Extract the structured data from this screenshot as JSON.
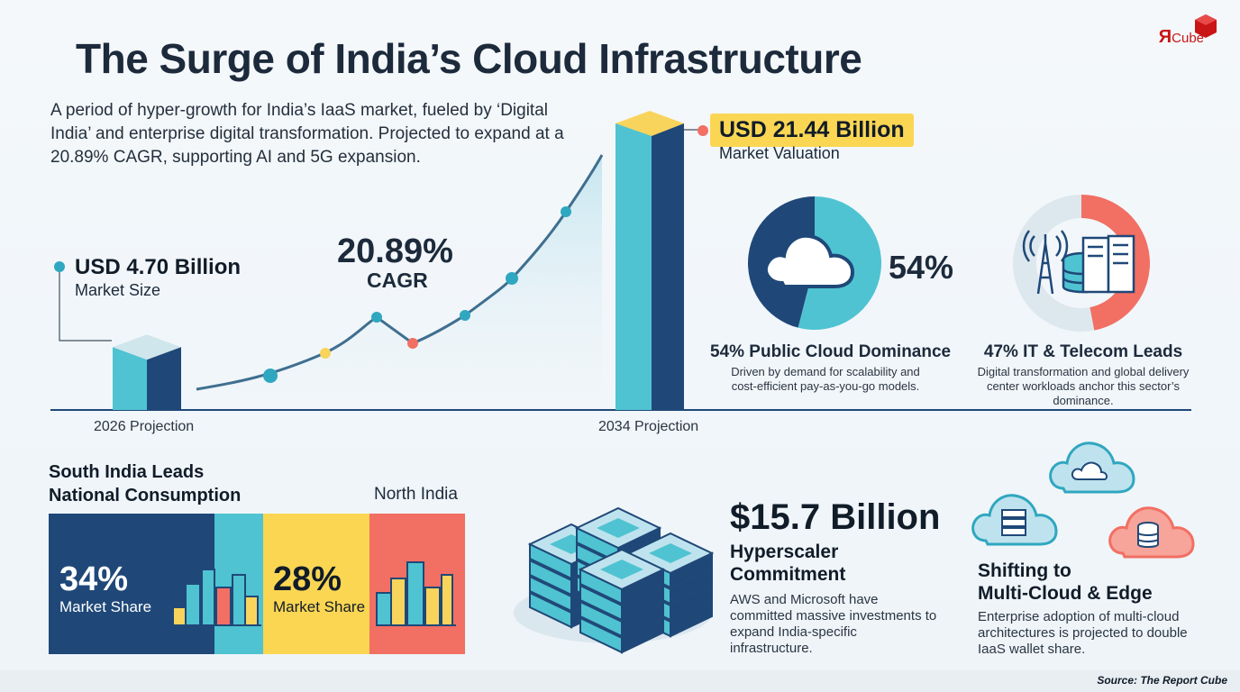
{
  "header": {
    "title": "The Surge of India’s Cloud Infrastructure",
    "subtitle": "A period of hyper-growth for India’s IaaS market, fueled by ‘Digital India’ and enterprise digital transformation. Projected to expand at a 20.89% CAGR, supporting AI and 5G expansion.",
    "logo_main": "Я",
    "logo_sub": "Cube"
  },
  "chart_data": [
    {
      "type": "bar",
      "categories": [
        "2026 Projection",
        "2034 Projection"
      ],
      "values": [
        4.7,
        21.44
      ],
      "value_labels": [
        "USD 4.70 Billion",
        "USD 21.44 Billion"
      ],
      "value_captions": [
        "Market Size",
        "Market Valuation"
      ],
      "annotation": {
        "value": "20.89%",
        "label": "CAGR"
      },
      "title": "",
      "xlabel": "",
      "ylabel": "",
      "colors": {
        "front": "#4fc3d1",
        "side": "#1f4878",
        "top_left": "#cfe6ec",
        "top_right": "#f9d45c"
      }
    },
    {
      "type": "pie",
      "categories": [
        "Public Cloud",
        "Other"
      ],
      "values": [
        54,
        46
      ],
      "colors": [
        "#4fc3d1",
        "#1f4878"
      ],
      "value_label": "54%",
      "title": "54% Public Cloud Dominance",
      "description": "Driven by demand for scalability and cost-efficient pay-as-you-go models."
    },
    {
      "type": "pie",
      "categories": [
        "IT & Telecom",
        "Other"
      ],
      "values": [
        47,
        53
      ],
      "colors": [
        "#f26f63",
        "#dde8ee"
      ],
      "title": "47% IT & Telecom Leads",
      "description": "Digital transformation and global delivery center workloads anchor this sector’s dominance."
    }
  ],
  "regions": {
    "heading_line1": "South India Leads",
    "heading_line2": "National Consumption",
    "north_label": "North India",
    "south": {
      "pct": "34%",
      "label": "Market Share",
      "color": "#1f4878"
    },
    "north": {
      "pct": "28%",
      "label": "Market Share",
      "color": "#fad653"
    },
    "accent_colors": [
      "#4fc3d1",
      "#f26f63"
    ]
  },
  "hyperscaler": {
    "value": "$15.7 Billion",
    "title_line1": "Hyperscaler",
    "title_line2": "Commitment",
    "description": "AWS and Microsoft have committed massive investments to expand India-specific infrastructure."
  },
  "multicloud": {
    "title_line1": "Shifting to",
    "title_line2": "Multi-Cloud & Edge",
    "description": "Enterprise adoption of multi-cloud architectures is projected to double IaaS wallet share."
  },
  "footer": {
    "source": "Source: The Report Cube"
  },
  "icons": [
    "cloud-icon",
    "cell-tower-icon",
    "server-rack-icon",
    "database-icon",
    "city-buildings-icon",
    "server-stack-icon",
    "logo-cube-icon"
  ]
}
